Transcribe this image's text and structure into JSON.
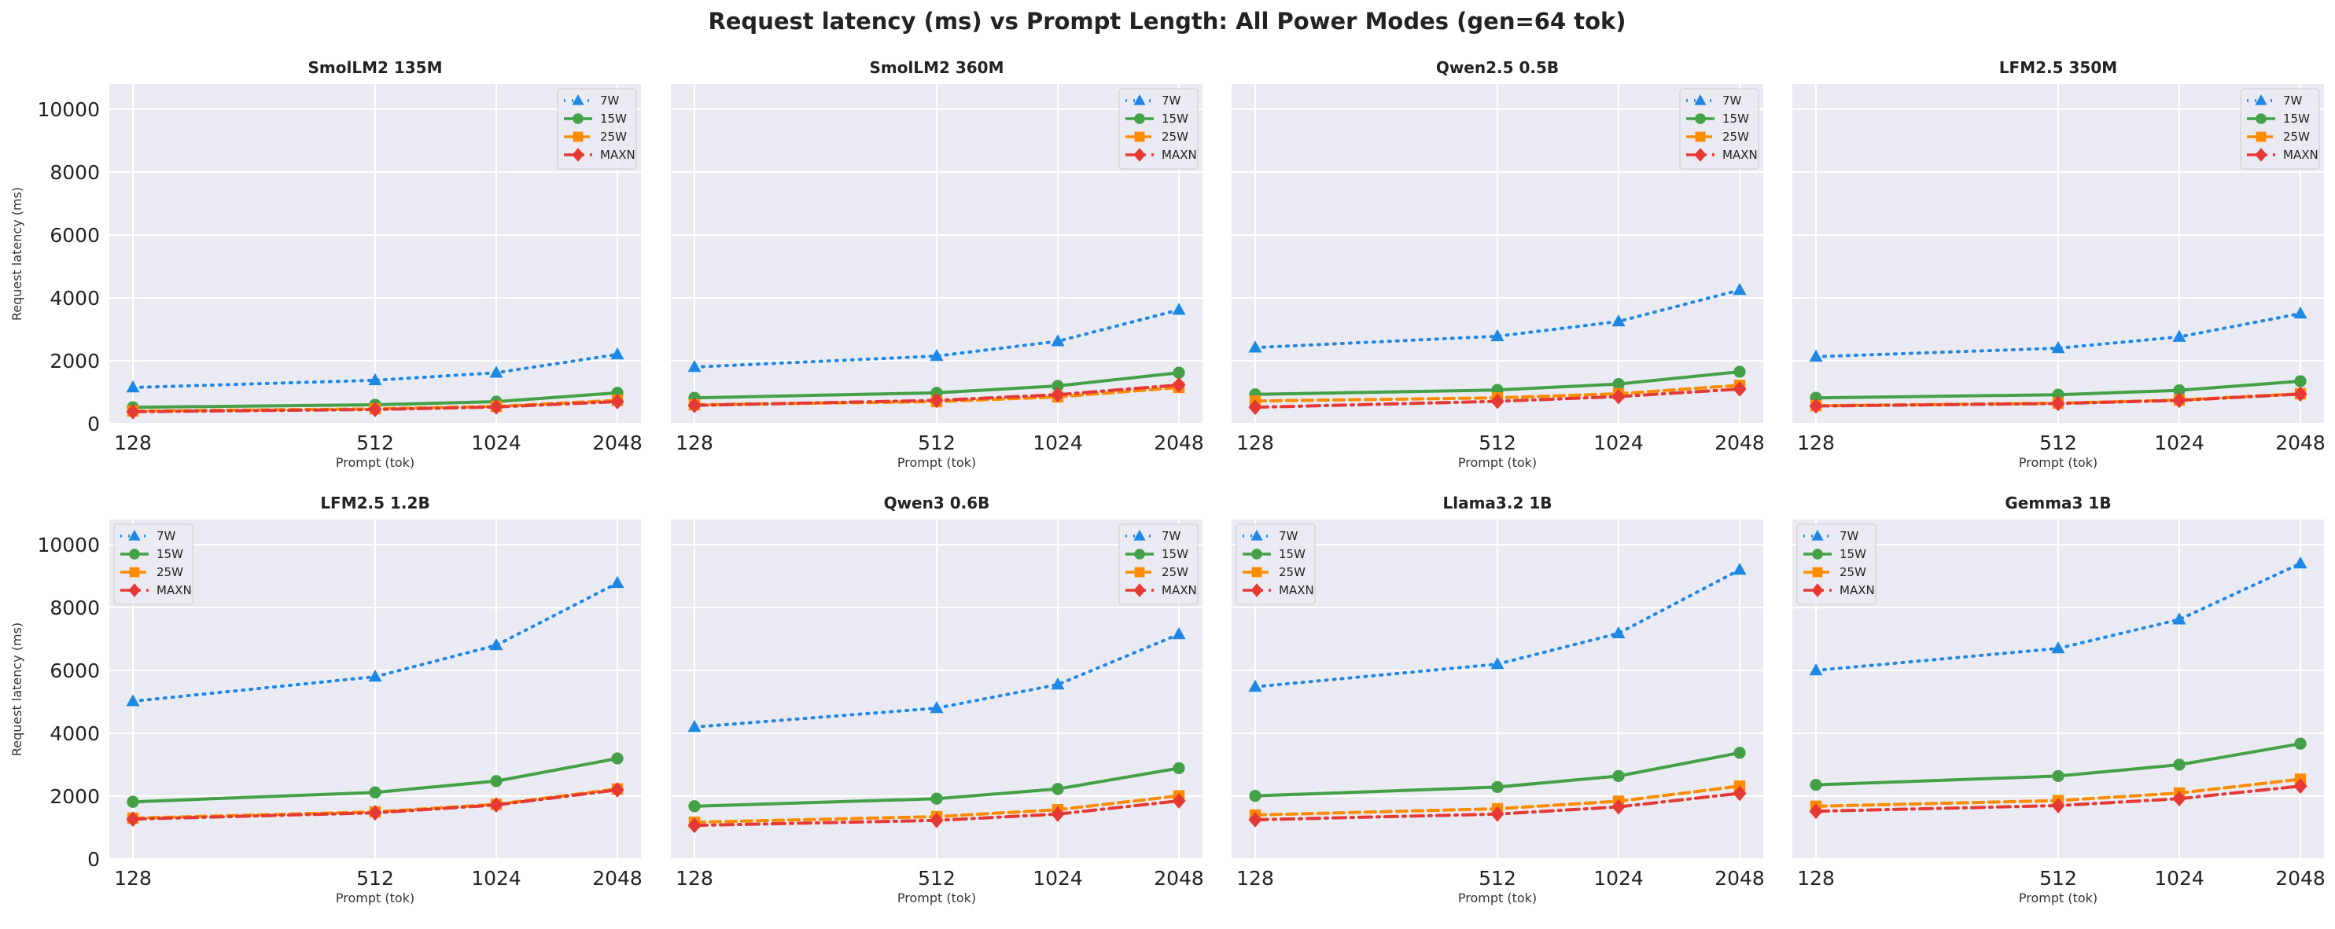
{
  "figure": {
    "title": "Request latency (ms) vs Prompt Length: All Power Modes (gen=64 tok)"
  },
  "chart_data": [
    {
      "type": "line",
      "title": "SmolLM2 135M",
      "x": [
        128,
        512,
        1024,
        2048
      ],
      "x_ticks": [
        "128",
        "512",
        "1024",
        "2048"
      ],
      "xlabel": "Prompt (tok)",
      "ylabel": "Request latency (ms)",
      "ylim": [
        0,
        10800
      ],
      "y_ticks": [
        "0",
        "2000",
        "4000",
        "6000",
        "8000",
        "10000"
      ],
      "grid": true,
      "legend": "top-right",
      "series": [
        {
          "name": "7W",
          "color": "#1e88e5",
          "marker": "triangle",
          "style": "dotted",
          "values": [
            1150,
            1380,
            1620,
            2200
          ]
        },
        {
          "name": "15W",
          "color": "#43a047",
          "marker": "circle",
          "style": "solid",
          "values": [
            520,
            600,
            700,
            980
          ]
        },
        {
          "name": "25W",
          "color": "#fb8c00",
          "marker": "square",
          "style": "dashed",
          "values": [
            400,
            470,
            550,
            740
          ]
        },
        {
          "name": "MAXN",
          "color": "#e53935",
          "marker": "diamond",
          "style": "dashdot",
          "values": [
            380,
            450,
            530,
            700
          ]
        }
      ]
    },
    {
      "type": "line",
      "title": "SmolLM2 360M",
      "x": [
        128,
        512,
        1024,
        2048
      ],
      "x_ticks": [
        "128",
        "512",
        "1024",
        "2048"
      ],
      "xlabel": "Prompt (tok)",
      "ylabel": "",
      "ylim": [
        0,
        10800
      ],
      "y_ticks": [],
      "grid": true,
      "legend": "top-right",
      "series": [
        {
          "name": "7W",
          "color": "#1e88e5",
          "marker": "triangle",
          "style": "dotted",
          "values": [
            1800,
            2150,
            2620,
            3620
          ]
        },
        {
          "name": "15W",
          "color": "#43a047",
          "marker": "circle",
          "style": "solid",
          "values": [
            820,
            980,
            1200,
            1620
          ]
        },
        {
          "name": "25W",
          "color": "#fb8c00",
          "marker": "square",
          "style": "dashed",
          "values": [
            600,
            700,
            850,
            1150
          ]
        },
        {
          "name": "MAXN",
          "color": "#e53935",
          "marker": "diamond",
          "style": "dashdot",
          "values": [
            580,
            740,
            920,
            1230
          ]
        }
      ]
    },
    {
      "type": "line",
      "title": "Qwen2.5 0.5B",
      "x": [
        128,
        512,
        1024,
        2048
      ],
      "x_ticks": [
        "128",
        "512",
        "1024",
        "2048"
      ],
      "xlabel": "Prompt (tok)",
      "ylabel": "",
      "ylim": [
        0,
        10800
      ],
      "y_ticks": [],
      "grid": true,
      "legend": "top-right",
      "series": [
        {
          "name": "7W",
          "color": "#1e88e5",
          "marker": "triangle",
          "style": "dotted",
          "values": [
            2420,
            2780,
            3250,
            4250
          ]
        },
        {
          "name": "15W",
          "color": "#43a047",
          "marker": "circle",
          "style": "solid",
          "values": [
            930,
            1070,
            1260,
            1650
          ]
        },
        {
          "name": "25W",
          "color": "#fb8c00",
          "marker": "square",
          "style": "dashed",
          "values": [
            720,
            820,
            950,
            1220
          ]
        },
        {
          "name": "MAXN",
          "color": "#e53935",
          "marker": "diamond",
          "style": "dashdot",
          "values": [
            520,
            710,
            860,
            1100
          ]
        }
      ]
    },
    {
      "type": "line",
      "title": "LFM2.5 350M",
      "x": [
        128,
        512,
        1024,
        2048
      ],
      "x_ticks": [
        "128",
        "512",
        "1024",
        "2048"
      ],
      "xlabel": "Prompt (tok)",
      "ylabel": "",
      "ylim": [
        0,
        10800
      ],
      "y_ticks": [],
      "grid": true,
      "legend": "top-right",
      "series": [
        {
          "name": "7W",
          "color": "#1e88e5",
          "marker": "triangle",
          "style": "dotted",
          "values": [
            2130,
            2400,
            2760,
            3500
          ]
        },
        {
          "name": "15W",
          "color": "#43a047",
          "marker": "circle",
          "style": "solid",
          "values": [
            820,
            920,
            1060,
            1350
          ]
        },
        {
          "name": "25W",
          "color": "#fb8c00",
          "marker": "square",
          "style": "dashed",
          "values": [
            570,
            650,
            750,
            950
          ]
        },
        {
          "name": "MAXN",
          "color": "#e53935",
          "marker": "diamond",
          "style": "dashdot",
          "values": [
            560,
            640,
            740,
            940
          ]
        }
      ]
    },
    {
      "type": "line",
      "title": "LFM2.5 1.2B",
      "x": [
        128,
        512,
        1024,
        2048
      ],
      "x_ticks": [
        "128",
        "512",
        "1024",
        "2048"
      ],
      "xlabel": "Prompt (tok)",
      "ylabel": "Request latency (ms)",
      "ylim": [
        0,
        10800
      ],
      "y_ticks": [
        "0",
        "2000",
        "4000",
        "6000",
        "8000",
        "10000"
      ],
      "grid": true,
      "legend": "top-left",
      "series": [
        {
          "name": "7W",
          "color": "#1e88e5",
          "marker": "triangle",
          "style": "dotted",
          "values": [
            5020,
            5800,
            6800,
            8780
          ]
        },
        {
          "name": "15W",
          "color": "#43a047",
          "marker": "circle",
          "style": "solid",
          "values": [
            1820,
            2120,
            2480,
            3200
          ]
        },
        {
          "name": "25W",
          "color": "#fb8c00",
          "marker": "square",
          "style": "dashed",
          "values": [
            1300,
            1500,
            1740,
            2230
          ]
        },
        {
          "name": "MAXN",
          "color": "#e53935",
          "marker": "diamond",
          "style": "dashdot",
          "values": [
            1270,
            1470,
            1720,
            2200
          ]
        }
      ]
    },
    {
      "type": "line",
      "title": "Qwen3 0.6B",
      "x": [
        128,
        512,
        1024,
        2048
      ],
      "x_ticks": [
        "128",
        "512",
        "1024",
        "2048"
      ],
      "xlabel": "Prompt (tok)",
      "ylabel": "",
      "ylim": [
        0,
        10800
      ],
      "y_ticks": [],
      "grid": true,
      "legend": "top-right",
      "series": [
        {
          "name": "7W",
          "color": "#1e88e5",
          "marker": "triangle",
          "style": "dotted",
          "values": [
            4200,
            4800,
            5550,
            7150
          ]
        },
        {
          "name": "15W",
          "color": "#43a047",
          "marker": "circle",
          "style": "solid",
          "values": [
            1680,
            1920,
            2230,
            2890
          ]
        },
        {
          "name": "25W",
          "color": "#fb8c00",
          "marker": "square",
          "style": "dashed",
          "values": [
            1170,
            1350,
            1570,
            2010
          ]
        },
        {
          "name": "MAXN",
          "color": "#e53935",
          "marker": "diamond",
          "style": "dashdot",
          "values": [
            1070,
            1230,
            1430,
            1850
          ]
        }
      ]
    },
    {
      "type": "line",
      "title": "Llama3.2 1B",
      "x": [
        128,
        512,
        1024,
        2048
      ],
      "x_ticks": [
        "128",
        "512",
        "1024",
        "2048"
      ],
      "xlabel": "Prompt (tok)",
      "ylabel": "",
      "ylim": [
        0,
        10800
      ],
      "y_ticks": [],
      "grid": true,
      "legend": "top-left",
      "series": [
        {
          "name": "7W",
          "color": "#1e88e5",
          "marker": "triangle",
          "style": "dotted",
          "values": [
            5480,
            6200,
            7180,
            9200
          ]
        },
        {
          "name": "15W",
          "color": "#43a047",
          "marker": "circle",
          "style": "solid",
          "values": [
            2010,
            2290,
            2640,
            3380
          ]
        },
        {
          "name": "25W",
          "color": "#fb8c00",
          "marker": "square",
          "style": "dashed",
          "values": [
            1400,
            1600,
            1840,
            2320
          ]
        },
        {
          "name": "MAXN",
          "color": "#e53935",
          "marker": "diamond",
          "style": "dashdot",
          "values": [
            1250,
            1430,
            1660,
            2090
          ]
        }
      ]
    },
    {
      "type": "line",
      "title": "Gemma3 1B",
      "x": [
        128,
        512,
        1024,
        2048
      ],
      "x_ticks": [
        "128",
        "512",
        "1024",
        "2048"
      ],
      "xlabel": "Prompt (tok)",
      "ylabel": "",
      "ylim": [
        0,
        10800
      ],
      "y_ticks": [],
      "grid": true,
      "legend": "top-left",
      "series": [
        {
          "name": "7W",
          "color": "#1e88e5",
          "marker": "triangle",
          "style": "dotted",
          "values": [
            6000,
            6700,
            7620,
            9400
          ]
        },
        {
          "name": "15W",
          "color": "#43a047",
          "marker": "circle",
          "style": "solid",
          "values": [
            2360,
            2640,
            3000,
            3670
          ]
        },
        {
          "name": "25W",
          "color": "#fb8c00",
          "marker": "square",
          "style": "dashed",
          "values": [
            1680,
            1860,
            2100,
            2540
          ]
        },
        {
          "name": "MAXN",
          "color": "#e53935",
          "marker": "diamond",
          "style": "dashdot",
          "values": [
            1520,
            1700,
            1920,
            2320
          ]
        }
      ]
    }
  ]
}
